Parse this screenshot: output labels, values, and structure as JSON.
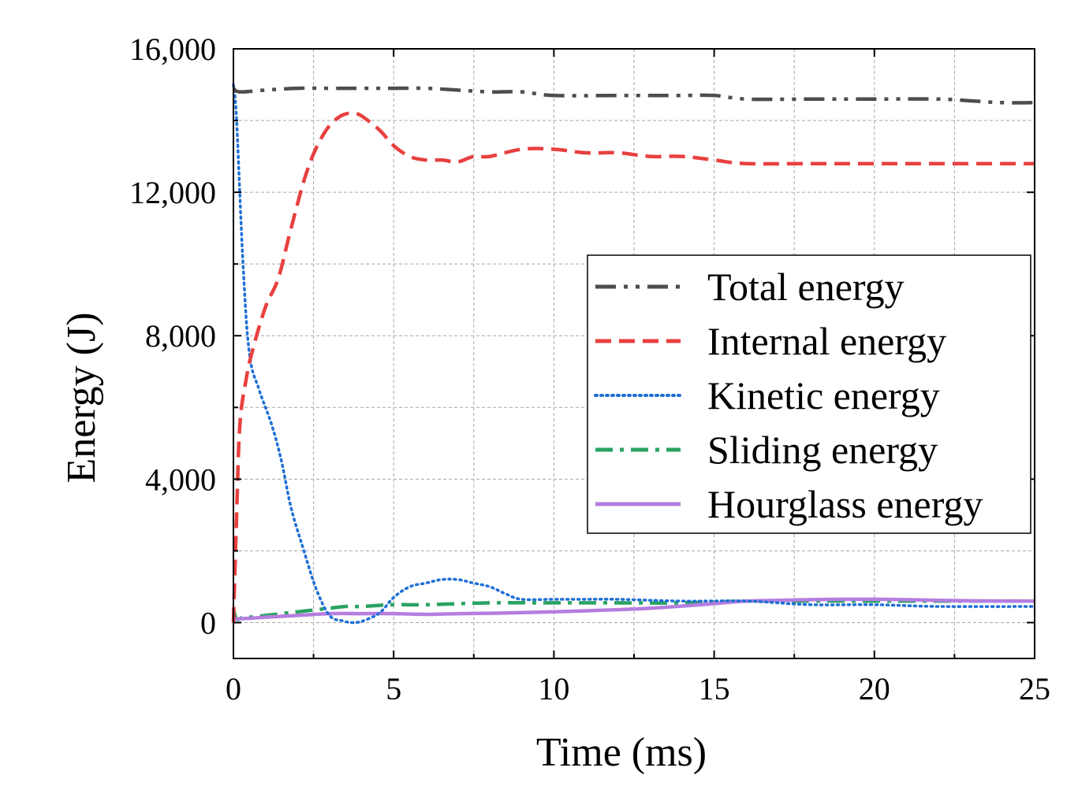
{
  "chart_data": {
    "type": "line",
    "title": "",
    "xlabel": "Time (ms)",
    "ylabel": "Energy (J)",
    "xlim": [
      0,
      25
    ],
    "ylim": [
      -1000,
      16000
    ],
    "xticks": [
      0,
      5,
      10,
      15,
      20,
      25
    ],
    "xtick_labels": [
      "0",
      "5",
      "10",
      "15",
      "20",
      "25"
    ],
    "yticks": [
      0,
      4000,
      8000,
      12000,
      16000
    ],
    "ytick_labels": [
      "0",
      "4,000",
      "8,000",
      "12,000",
      "16,000"
    ],
    "grid": true,
    "legend_position": "center-right",
    "series": [
      {
        "name": "Total energy",
        "color": "#4d4d4d",
        "dash": "dash-dot-dot",
        "x": [
          0,
          0.2,
          1,
          2,
          3,
          4,
          5,
          6,
          7,
          8,
          9,
          10,
          12,
          14,
          15,
          16,
          18,
          20,
          22,
          23,
          24,
          25
        ],
        "y": [
          14900,
          14800,
          14850,
          14900,
          14900,
          14900,
          14900,
          14900,
          14850,
          14800,
          14800,
          14700,
          14700,
          14700,
          14700,
          14600,
          14600,
          14600,
          14600,
          14550,
          14500,
          14500
        ]
      },
      {
        "name": "Internal energy",
        "color": "#e8403f",
        "dash": "dash",
        "x": [
          0,
          0.1,
          0.2,
          0.4,
          0.6,
          1,
          1.4,
          1.8,
          2.3,
          2.8,
          3.3,
          3.8,
          4.2,
          4.6,
          5,
          5.5,
          6,
          6.5,
          7,
          7.5,
          8,
          9,
          10,
          11,
          12,
          13,
          14,
          15,
          16,
          18,
          20,
          22,
          25
        ],
        "y": [
          0,
          3000,
          5500,
          6800,
          7600,
          8800,
          9600,
          11000,
          12600,
          13600,
          14100,
          14200,
          14000,
          13700,
          13300,
          13000,
          12900,
          12900,
          12850,
          13000,
          13000,
          13200,
          13200,
          13100,
          13100,
          13000,
          13000,
          12900,
          12800,
          12800,
          12800,
          12800,
          12800
        ]
      },
      {
        "name": "Kinetic energy",
        "color": "#1f6fd6",
        "dash": "dot",
        "x": [
          0,
          0.1,
          0.3,
          0.5,
          0.8,
          1.2,
          1.5,
          1.8,
          2.2,
          2.6,
          3.0,
          3.4,
          3.8,
          4.2,
          4.6,
          5,
          5.5,
          6,
          6.5,
          7,
          7.5,
          8,
          8.5,
          9,
          10,
          11,
          12,
          14,
          16,
          18,
          20,
          22,
          25
        ],
        "y": [
          15000,
          14000,
          10000,
          7500,
          6500,
          5500,
          4500,
          3200,
          2000,
          900,
          200,
          50,
          0,
          100,
          300,
          700,
          1000,
          1100,
          1200,
          1200,
          1100,
          1000,
          800,
          650,
          650,
          650,
          650,
          600,
          600,
          500,
          500,
          450,
          450
        ]
      },
      {
        "name": "Sliding energy",
        "color": "#2aa362",
        "dash": "dash-dot",
        "x": [
          0,
          0.1,
          0.3,
          0.5,
          1,
          1.5,
          2,
          2.5,
          3,
          3.5,
          4,
          5,
          6,
          8,
          10,
          12,
          14,
          16,
          18,
          20,
          22,
          25
        ],
        "y": [
          400,
          100,
          150,
          150,
          200,
          250,
          300,
          350,
          400,
          450,
          450,
          500,
          500,
          550,
          550,
          550,
          550,
          600,
          600,
          600,
          600,
          600
        ]
      },
      {
        "name": "Hourglass energy",
        "color": "#b57ee0",
        "dash": "solid",
        "x": [
          0,
          0.5,
          1,
          2,
          3,
          4,
          5,
          6,
          7,
          8,
          9,
          10,
          11,
          12,
          13,
          14,
          15,
          16,
          17,
          18,
          19,
          20,
          21,
          22,
          23,
          24,
          25
        ],
        "y": [
          100,
          120,
          150,
          200,
          250,
          250,
          250,
          230,
          250,
          260,
          280,
          300,
          330,
          360,
          400,
          460,
          530,
          600,
          620,
          640,
          650,
          650,
          640,
          620,
          610,
          600,
          600
        ]
      }
    ]
  }
}
